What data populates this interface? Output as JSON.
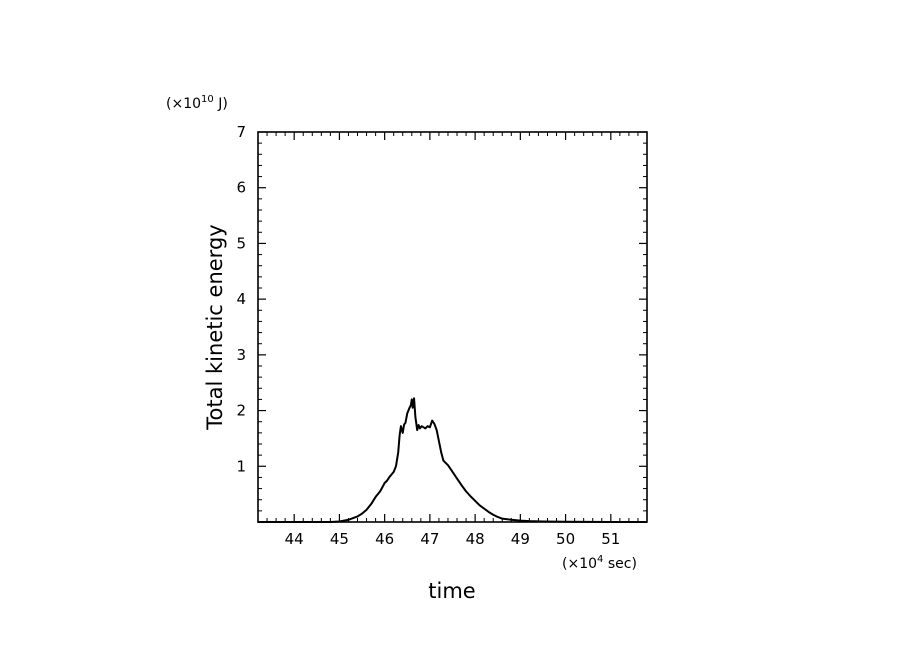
{
  "chart_data": {
    "type": "line",
    "title": "",
    "xlabel": "time",
    "ylabel": "Total kinetic energy",
    "x_multiplier": {
      "prefix": "(×10",
      "exponent": "4",
      "suffix": " sec)"
    },
    "y_multiplier": {
      "prefix": "(×10",
      "exponent": "10",
      "suffix": " J)"
    },
    "xlim": [
      43.2,
      51.8
    ],
    "ylim": [
      0,
      7
    ],
    "xticks": [
      44,
      45,
      46,
      47,
      48,
      49,
      50,
      51
    ],
    "yticks": [
      1,
      2,
      3,
      4,
      5,
      6,
      7
    ],
    "grid": false,
    "legend": "none",
    "line_color": "#000000",
    "series": [
      {
        "x": [
          43.2,
          44.0,
          44.8,
          45.0,
          45.2,
          45.4,
          45.5,
          45.6,
          45.7,
          45.8,
          45.9,
          46.0,
          46.05,
          46.1,
          46.2,
          46.25,
          46.3,
          46.33,
          46.36,
          46.4,
          46.43,
          46.46,
          46.5,
          46.55,
          46.58,
          46.6,
          46.62,
          46.65,
          46.68,
          46.72,
          46.75,
          46.78,
          46.82,
          46.86,
          46.9,
          46.95,
          47.0,
          47.05,
          47.1,
          47.15,
          47.2,
          47.25,
          47.3,
          47.4,
          47.5,
          47.6,
          47.7,
          47.8,
          47.9,
          48.0,
          48.1,
          48.2,
          48.3,
          48.4,
          48.5,
          48.6,
          48.8,
          49.0,
          49.2,
          49.5,
          50.0,
          50.5,
          51.0,
          51.8
        ],
        "y": [
          0.0,
          0.0,
          0.0,
          0.01,
          0.04,
          0.1,
          0.15,
          0.22,
          0.32,
          0.45,
          0.55,
          0.7,
          0.74,
          0.8,
          0.9,
          1.0,
          1.25,
          1.55,
          1.72,
          1.6,
          1.75,
          1.78,
          1.95,
          2.05,
          2.1,
          2.2,
          2.05,
          2.22,
          1.88,
          1.65,
          1.74,
          1.68,
          1.72,
          1.7,
          1.68,
          1.72,
          1.7,
          1.82,
          1.76,
          1.65,
          1.45,
          1.25,
          1.1,
          1.02,
          0.9,
          0.78,
          0.66,
          0.55,
          0.46,
          0.38,
          0.3,
          0.24,
          0.18,
          0.13,
          0.09,
          0.06,
          0.04,
          0.025,
          0.015,
          0.008,
          0.004,
          0.002,
          0.001,
          0.0
        ]
      }
    ]
  }
}
